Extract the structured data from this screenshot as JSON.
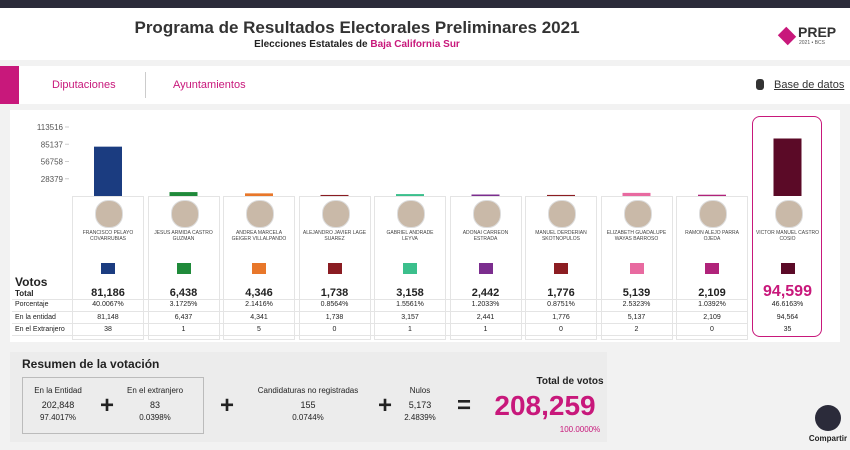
{
  "header": {
    "title": "Programa de Resultados Electorales Preliminares 2021",
    "subtitle_prefix": "Elecciones Estatales de",
    "subtitle_state": "Baja California Sur",
    "logo": "PREP",
    "logo_sub": "2021 • BCS"
  },
  "tabs": [
    "Diputaciones",
    "Ayuntamientos"
  ],
  "database_link": "Base de datos",
  "chart_data": {
    "type": "bar",
    "categories": [
      "FRANCISCO PELAYO COVARRUBIAS",
      "JESUS ARMIDA CASTRO GUZMAN",
      "ANDREA MARCELA GEIGER VILLALPANDO",
      "ALEJANDRO JAVIER LAGE SUAREZ",
      "GABRIEL ANDRADE LEYVA",
      "ADONAI CARREON ESTRADA",
      "MANUEL DERDERIAN SKOTNOPULOS",
      "ELIZABETH GUADALUPE WAYAS BARROSO",
      "RAMON ALEJO PARRA OJEDA",
      "VICTOR MANUEL CASTRO COSIO"
    ],
    "values": [
      81186,
      6438,
      4346,
      1738,
      3158,
      2442,
      1776,
      5139,
      2109,
      94599
    ],
    "value_labels": [
      "81,186",
      "6,438",
      "4,346",
      "1,738",
      "3,158",
      "2,442",
      "1,776",
      "5,139",
      "2,109",
      "94,599"
    ],
    "colors": [
      "#1b3c80",
      "#1f8a3a",
      "#e8772a",
      "#8a1c22",
      "#3bbf8c",
      "#7b2d8e",
      "#8c1d22",
      "#e86aa0",
      "#b0237a",
      "#5b0a27"
    ],
    "ylim": [
      0,
      113516
    ],
    "yticks": [
      28379,
      56758,
      85137,
      113516
    ]
  },
  "row_labels": {
    "votes": "Votos",
    "total": "Total",
    "percentage": "Porcentaje",
    "entity": "En la entidad",
    "abroad": "En el Extranjero"
  },
  "percentages": [
    "40.0067%",
    "3.1725%",
    "2.1416%",
    "0.8564%",
    "1.5561%",
    "1.2033%",
    "0.8751%",
    "2.5323%",
    "1.0392%",
    "46.6163%"
  ],
  "in_entity": [
    "81,148",
    "6,437",
    "4,341",
    "1,738",
    "3,157",
    "2,441",
    "1,776",
    "5,137",
    "2,109",
    "94,564"
  ],
  "abroad": [
    "38",
    "1",
    "5",
    "0",
    "1",
    "1",
    "0",
    "2",
    "0",
    "35"
  ],
  "summary": {
    "title": "Resumen de la votación",
    "items": [
      {
        "label": "En la Entidad",
        "value": "202,848",
        "pct": "97.4017%"
      },
      {
        "label": "En el extranjero",
        "value": "83",
        "pct": "0.0398%"
      },
      {
        "label": "Candidaturas no registradas",
        "value": "155",
        "pct": "0.0744%"
      },
      {
        "label": "Nulos",
        "value": "5,173",
        "pct": "2.4839%"
      }
    ],
    "total": {
      "label": "Total de votos",
      "value": "208,259",
      "pct": "100.0000%"
    }
  },
  "share": "Compartir"
}
